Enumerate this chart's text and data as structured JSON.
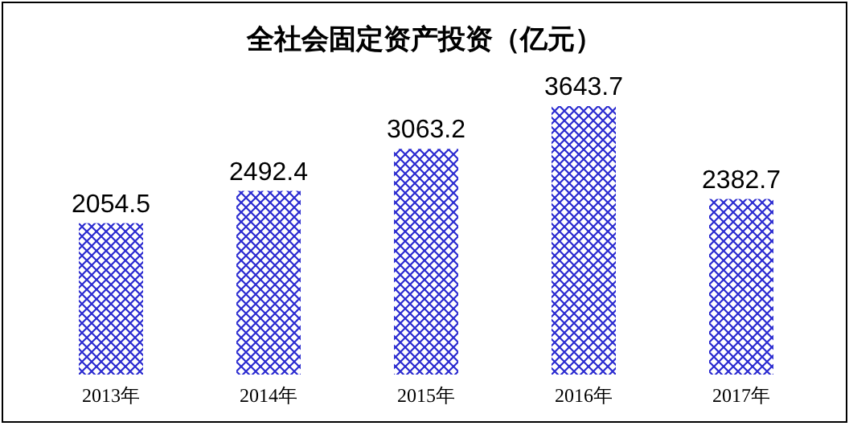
{
  "chart_data": {
    "type": "bar",
    "title": "全社会固定资产投资（亿元）",
    "categories": [
      "2013年",
      "2014年",
      "2015年",
      "2016年",
      "2017年"
    ],
    "values": [
      2054.5,
      2492.4,
      3063.2,
      3643.7,
      2382.7
    ],
    "color": "#2a2ad0",
    "data_labels": true
  }
}
